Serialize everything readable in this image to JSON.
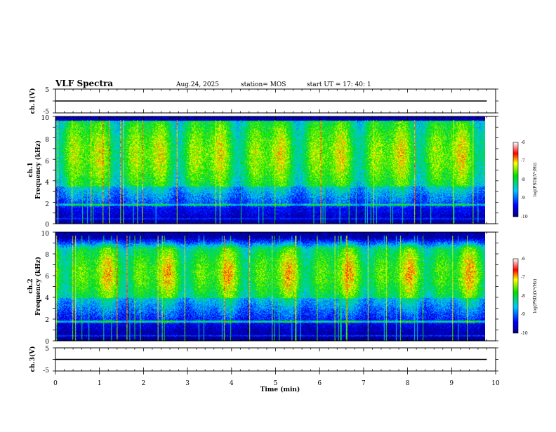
{
  "header": {
    "title": "VLF Spectra",
    "date": "Aug.24, 2025",
    "station": "station= MOS",
    "start_ut": "start  UT =   17: 40: 1"
  },
  "chart_data": [
    {
      "type": "line",
      "name": "ch1-voltage",
      "ylabel": "ch.1(V)",
      "ylim": [
        -5,
        5
      ],
      "y_ticks": [
        "5",
        "-5"
      ],
      "baseline_value": 0
    },
    {
      "type": "heatmap",
      "name": "ch1-spectrogram",
      "ylabel_line1": "ch.1",
      "ylabel_line2": "Frequency (kHz)",
      "ylim": [
        0,
        10
      ],
      "y_ticks": [
        "0",
        "2",
        "4",
        "6",
        "8",
        "10"
      ],
      "band_peak_khz": [
        3.5,
        9.5
      ],
      "colorbar": {
        "label": "log(PSD)(V²/Hz)",
        "range": [
          -10,
          -6
        ],
        "ticks": [
          "-6",
          "-7",
          "-8",
          "-9",
          "-10"
        ]
      }
    },
    {
      "type": "heatmap",
      "name": "ch2-spectrogram",
      "ylabel_line1": "ch.2",
      "ylabel_line2": "Frequency (kHz)",
      "ylim": [
        0,
        10
      ],
      "y_ticks": [
        "0",
        "2",
        "4",
        "6",
        "8",
        "10"
      ],
      "band_peak_khz": [
        4.0,
        8.5
      ],
      "colorbar": {
        "label": "log(PSD)(V²/Hz)",
        "range": [
          -10,
          -6
        ],
        "ticks": [
          "-6",
          "-7",
          "-8",
          "-9",
          "-10"
        ]
      }
    },
    {
      "type": "line",
      "name": "ch3-voltage",
      "ylabel": "ch.3(V)",
      "ylim": [
        -5,
        5
      ],
      "y_ticks": [
        "5",
        "-5"
      ],
      "baseline_value": 0
    }
  ],
  "x_axis": {
    "label": "Time  (min)",
    "xlim": [
      0,
      10
    ],
    "data_end_min": 9.8,
    "ticks": [
      "0",
      "1",
      "2",
      "3",
      "4",
      "5",
      "6",
      "7",
      "8",
      "9",
      "10"
    ]
  }
}
